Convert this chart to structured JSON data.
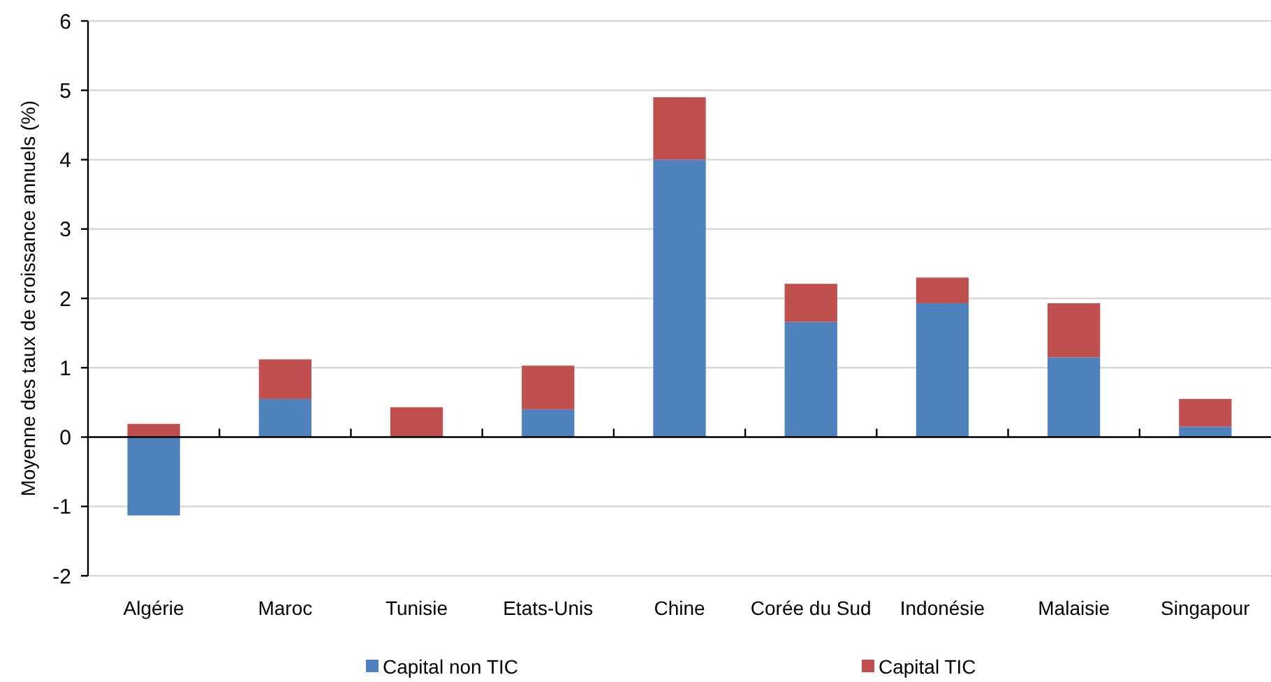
{
  "chart_data": {
    "type": "bar",
    "stacked": true,
    "ylabel": "Moyenne des taux de croissance annuels (%)",
    "categories": [
      "Algérie",
      "Maroc",
      "Tunisie",
      "Etats-Unis",
      "Chine",
      "Corée du Sud",
      "Indonésie",
      "Malaisie",
      "Singapour"
    ],
    "series": [
      {
        "name": "Capital non TIC",
        "color": "#4f81bd",
        "values": [
          -1.13,
          0.55,
          0,
          0.4,
          4.0,
          1.66,
          1.93,
          1.15,
          0.15
        ]
      },
      {
        "name": "Capital TIC",
        "color": "#c0504d",
        "values": [
          0.19,
          0.57,
          0.43,
          0.63,
          0.9,
          0.55,
          0.37,
          0.78,
          0.4
        ]
      }
    ],
    "ylim": [
      -2,
      6
    ],
    "yticks": [
      -2,
      -1,
      0,
      1,
      2,
      3,
      4,
      5,
      6
    ],
    "grid": "y",
    "legend": "bottom"
  }
}
